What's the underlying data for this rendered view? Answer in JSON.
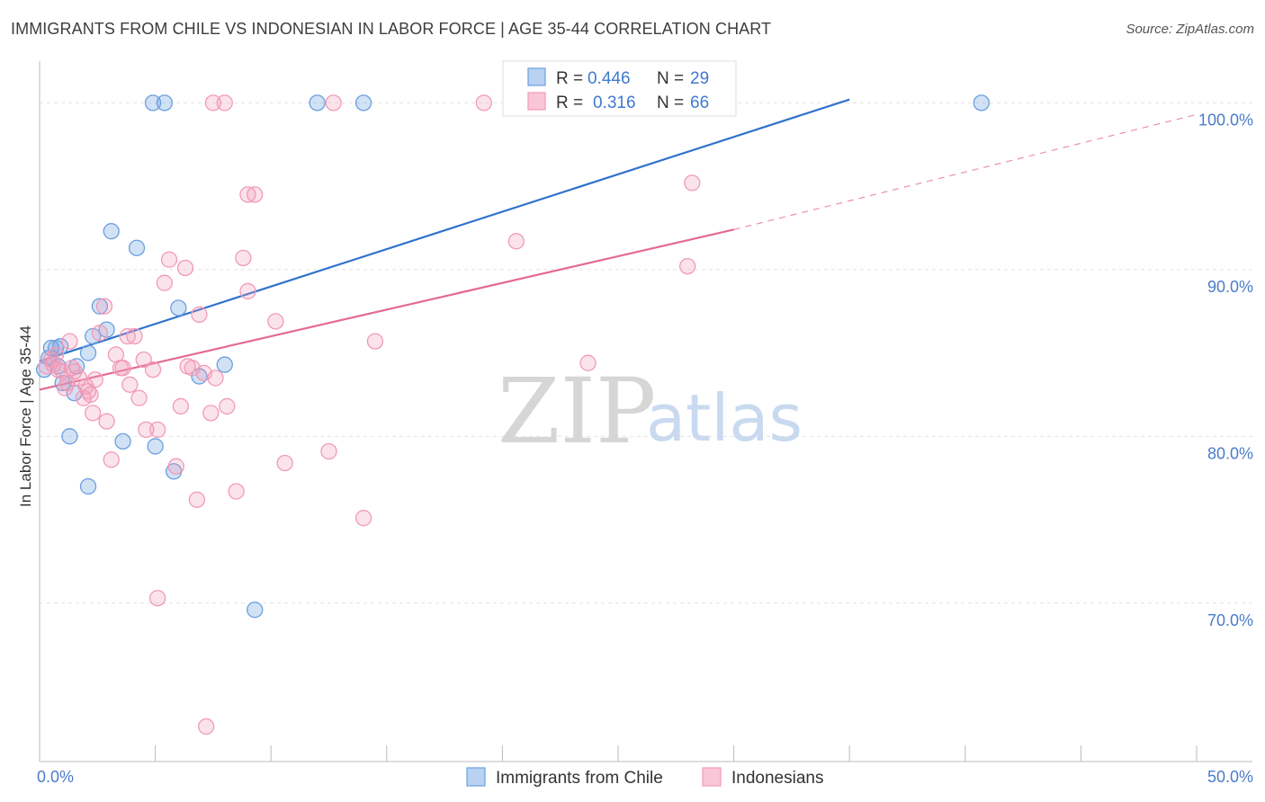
{
  "title": "IMMIGRANTS FROM CHILE VS INDONESIAN IN LABOR FORCE | AGE 35-44 CORRELATION CHART",
  "source": "Source: ZipAtlas.com",
  "watermark": {
    "zip": "ZIP",
    "atlas": "atlas"
  },
  "colors": {
    "blue": "#6a9fdf",
    "blue_line": "#2f72cc",
    "pink": "#f29ab8",
    "pink_line": "#e46a97",
    "axis_text": "#4a7cc9"
  },
  "chart_data": {
    "type": "scatter",
    "xlabel": "",
    "ylabel": "In Labor Force | Age 35-44",
    "xlim": [
      0,
      50
    ],
    "ylim": [
      60.5,
      102.5
    ],
    "x_tick_labels": [
      {
        "value": 0,
        "label": "0.0%"
      },
      {
        "value": 50,
        "label": "50.0%"
      }
    ],
    "y_tick_labels": [
      {
        "value": 100,
        "label": "100.0%"
      },
      {
        "value": 90,
        "label": "90.0%"
      },
      {
        "value": 80,
        "label": "80.0%"
      },
      {
        "value": 70,
        "label": "70.0%"
      }
    ],
    "legend": {
      "r_label": "R =",
      "n_label": "N =",
      "entries": [
        {
          "series": "Immigrants from Chile",
          "r": "0.446",
          "n": "29"
        },
        {
          "series": "Indonesians",
          "r": "0.316",
          "n": "66"
        }
      ]
    },
    "series": [
      {
        "name": "Immigrants from Chile",
        "color": "#6a9fdf",
        "trend": {
          "x0": 0,
          "y0": 84.5,
          "x1": 35,
          "y1": 100.2
        },
        "points": [
          [
            0.2,
            84.0
          ],
          [
            0.4,
            84.7
          ],
          [
            0.5,
            85.3
          ],
          [
            0.7,
            85.3
          ],
          [
            0.9,
            85.4
          ],
          [
            0.8,
            84.2
          ],
          [
            1.0,
            83.2
          ],
          [
            1.3,
            80.0
          ],
          [
            1.5,
            82.6
          ],
          [
            1.6,
            84.2
          ],
          [
            2.1,
            85.0
          ],
          [
            2.3,
            86.0
          ],
          [
            2.6,
            87.8
          ],
          [
            2.9,
            86.4
          ],
          [
            2.1,
            77.0
          ],
          [
            3.1,
            92.3
          ],
          [
            3.6,
            79.7
          ],
          [
            4.2,
            91.3
          ],
          [
            5.0,
            79.4
          ],
          [
            5.8,
            77.9
          ],
          [
            6.0,
            87.7
          ],
          [
            6.9,
            83.6
          ],
          [
            8.0,
            84.3
          ],
          [
            9.3,
            69.6
          ],
          [
            4.9,
            100.0
          ],
          [
            5.4,
            100.0
          ],
          [
            12.0,
            100.0
          ],
          [
            14.0,
            100.0
          ],
          [
            40.7,
            100.0
          ]
        ]
      },
      {
        "name": "Indonesians",
        "color": "#f29ab8",
        "trend": {
          "x0": 0,
          "y0": 82.8,
          "x1": 30,
          "y1": 92.4,
          "dash_x1": 50,
          "dash_y1": 99.3
        },
        "points": [
          [
            0.3,
            84.2
          ],
          [
            0.5,
            84.6
          ],
          [
            0.7,
            84.9
          ],
          [
            0.8,
            84.0
          ],
          [
            1.0,
            83.9
          ],
          [
            1.1,
            82.9
          ],
          [
            1.3,
            85.7
          ],
          [
            1.4,
            84.1
          ],
          [
            1.5,
            83.9
          ],
          [
            1.7,
            83.5
          ],
          [
            1.9,
            82.3
          ],
          [
            2.0,
            83.0
          ],
          [
            2.1,
            82.7
          ],
          [
            2.3,
            81.4
          ],
          [
            2.4,
            83.4
          ],
          [
            2.6,
            86.2
          ],
          [
            2.9,
            80.9
          ],
          [
            3.1,
            78.6
          ],
          [
            3.3,
            84.9
          ],
          [
            3.6,
            84.1
          ],
          [
            3.8,
            86.0
          ],
          [
            3.9,
            83.1
          ],
          [
            4.3,
            82.3
          ],
          [
            4.5,
            84.6
          ],
          [
            4.6,
            80.4
          ],
          [
            4.9,
            84.0
          ],
          [
            5.1,
            80.4
          ],
          [
            5.4,
            89.2
          ],
          [
            5.6,
            90.6
          ],
          [
            5.9,
            78.2
          ],
          [
            6.1,
            81.8
          ],
          [
            6.3,
            90.1
          ],
          [
            6.6,
            84.1
          ],
          [
            6.8,
            76.2
          ],
          [
            6.9,
            87.3
          ],
          [
            7.1,
            83.8
          ],
          [
            7.4,
            81.4
          ],
          [
            7.6,
            83.5
          ],
          [
            8.1,
            81.8
          ],
          [
            8.5,
            76.7
          ],
          [
            8.8,
            90.7
          ],
          [
            9.0,
            88.7
          ],
          [
            9.3,
            94.5
          ],
          [
            9.0,
            94.5
          ],
          [
            10.2,
            86.9
          ],
          [
            10.6,
            78.4
          ],
          [
            12.5,
            79.1
          ],
          [
            14.0,
            75.1
          ],
          [
            14.5,
            85.7
          ],
          [
            5.1,
            70.3
          ],
          [
            7.2,
            62.6
          ],
          [
            7.5,
            100.0
          ],
          [
            8.0,
            100.0
          ],
          [
            12.7,
            100.0
          ],
          [
            19.2,
            100.0
          ],
          [
            20.6,
            91.7
          ],
          [
            23.7,
            84.4
          ],
          [
            28.0,
            90.2
          ],
          [
            28.2,
            95.2
          ],
          [
            2.8,
            87.8
          ],
          [
            3.5,
            84.1
          ],
          [
            4.1,
            86.0
          ],
          [
            1.2,
            83.2
          ],
          [
            6.4,
            84.2
          ],
          [
            2.2,
            82.5
          ],
          [
            0.6,
            84.3
          ]
        ]
      }
    ]
  }
}
